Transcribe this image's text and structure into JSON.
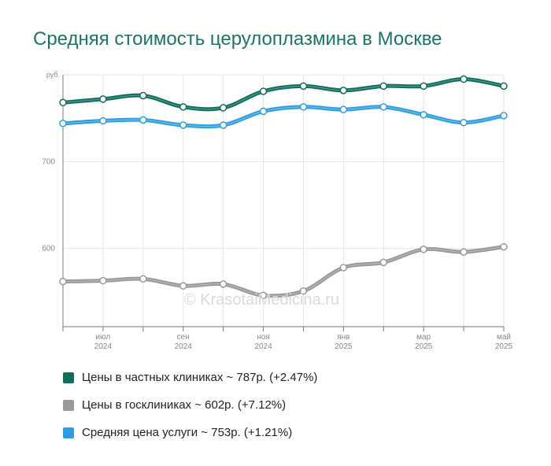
{
  "title": "Средняя стоимость церулоплазмина в Москве",
  "watermark": "© KrasotaiMedicina.ru",
  "chart_data": {
    "type": "line",
    "title": "Средняя стоимость церулоплазмина в Москве",
    "ylabel": "руб.",
    "xlabel": "",
    "ylim": [
      510,
      800
    ],
    "yticks": [
      600,
      700
    ],
    "x_points": 12,
    "x_tick_labels": [
      {
        "index": 1,
        "month": "июл",
        "year": "2024"
      },
      {
        "index": 3,
        "month": "сен",
        "year": "2024"
      },
      {
        "index": 5,
        "month": "ноя",
        "year": "2024"
      },
      {
        "index": 7,
        "month": "янв",
        "year": "2025"
      },
      {
        "index": 9,
        "month": "мар",
        "year": "2025"
      },
      {
        "index": 11,
        "month": "май",
        "year": "2025"
      }
    ],
    "grid": true,
    "legend_position": "bottom",
    "series": [
      {
        "name": "Цены в частных клиниках ~ 787р. (+2.47%)",
        "color": "#0e6e5e",
        "values": [
          768,
          772,
          776,
          763,
          762,
          781,
          787,
          782,
          787,
          787,
          795,
          787
        ]
      },
      {
        "name": "Цены в госклиниках ~ 602р. (+7.12%)",
        "color": "#999999",
        "values": [
          562,
          563,
          565,
          557,
          559,
          546,
          551,
          578,
          584,
          599,
          596,
          602
        ]
      },
      {
        "name": "Средняя цена услуги ~ 753р. (+1.21%)",
        "color": "#2f9ee0",
        "values": [
          744,
          747,
          748,
          742,
          742,
          758,
          763,
          760,
          763,
          754,
          745,
          753
        ]
      }
    ]
  }
}
